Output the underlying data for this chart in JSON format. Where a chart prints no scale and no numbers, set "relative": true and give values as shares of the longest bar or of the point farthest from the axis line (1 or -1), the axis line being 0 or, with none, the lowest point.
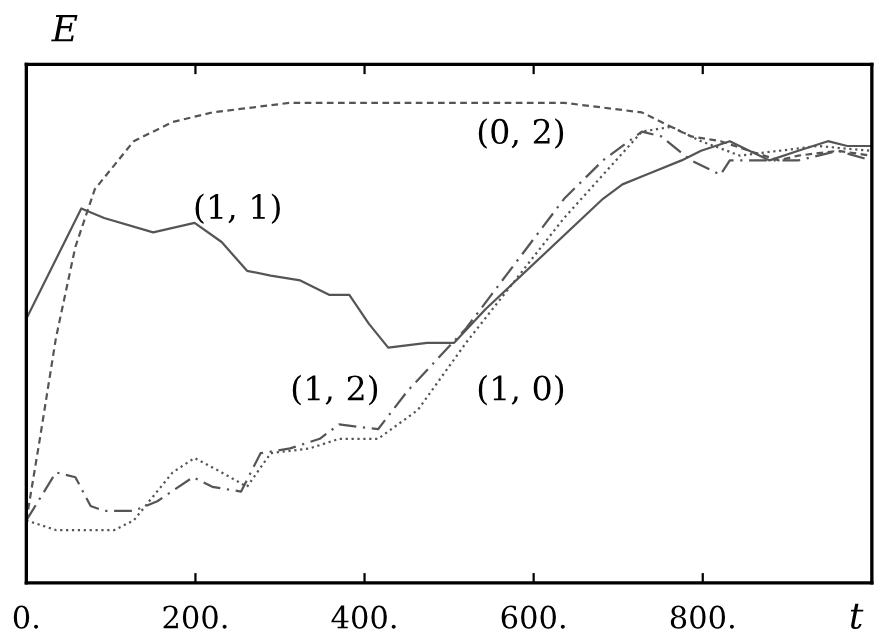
{
  "chart_data": {
    "type": "line",
    "relative": true,
    "ylabel": "E",
    "xlabel": "t",
    "tick_labels": "x",
    "grid": false,
    "legend": false,
    "xlim": [
      0,
      1000
    ],
    "xticks": [
      {
        "value": 0,
        "label": "0."
      },
      {
        "value": 200,
        "label": "200."
      },
      {
        "value": 400,
        "label": "400."
      },
      {
        "value": 600,
        "label": "600."
      },
      {
        "value": 800,
        "label": "800."
      }
    ],
    "series": [
      {
        "name": "(1, 1)",
        "color": "#555555",
        "line_style": "solid",
        "x": [
          0,
          65,
          92,
          150,
          199,
          231,
          261,
          289,
          324,
          358,
          382,
          405,
          428,
          474,
          506,
          543,
          682,
          705,
          733,
          775,
          798,
          832,
          855,
          879,
          913,
          948,
          971,
          999
        ],
        "values": [
          0.55,
          0.78,
          0.76,
          0.73,
          0.75,
          0.71,
          0.65,
          0.64,
          0.63,
          0.6,
          0.6,
          0.54,
          0.49,
          0.5,
          0.5,
          0.57,
          0.8,
          0.83,
          0.85,
          0.88,
          0.9,
          0.92,
          0.9,
          0.88,
          0.9,
          0.92,
          0.91,
          0.91
        ]
      },
      {
        "name": "(0, 2)",
        "color": "#555555",
        "line_style": "dashed",
        "x": [
          0,
          16,
          35,
          58,
          81,
          127,
          173,
          220,
          312,
          451,
          636,
          682,
          728,
          751,
          786,
          821,
          855,
          890,
          913,
          960,
          999
        ],
        "values": [
          0.13,
          0.3,
          0.51,
          0.7,
          0.82,
          0.92,
          0.96,
          0.98,
          1.0,
          1.0,
          1.0,
          0.99,
          0.98,
          0.96,
          0.93,
          0.92,
          0.9,
          0.88,
          0.89,
          0.9,
          0.89
        ]
      },
      {
        "name": "(1, 2)",
        "color": "#555555",
        "line_style": "dashdot",
        "x": [
          0,
          35,
          58,
          76,
          92,
          127,
          155,
          197,
          220,
          254,
          277,
          312,
          347,
          370,
          416,
          451,
          520,
          636,
          682,
          728,
          751,
          786,
          821,
          832,
          867,
          913,
          960,
          999
        ],
        "values": [
          0.13,
          0.23,
          0.22,
          0.16,
          0.15,
          0.15,
          0.17,
          0.22,
          0.2,
          0.19,
          0.27,
          0.28,
          0.3,
          0.33,
          0.32,
          0.4,
          0.53,
          0.8,
          0.88,
          0.94,
          0.93,
          0.88,
          0.85,
          0.88,
          0.88,
          0.88,
          0.9,
          0.88
        ]
      },
      {
        "name": "(1, 0)",
        "color": "#555555",
        "line_style": "dotted",
        "x": [
          0,
          35,
          69,
          104,
          127,
          173,
          199,
          231,
          261,
          289,
          335,
          370,
          416,
          463,
          520,
          636,
          682,
          728,
          763,
          798,
          844,
          890,
          936,
          999
        ],
        "values": [
          0.13,
          0.11,
          0.11,
          0.11,
          0.13,
          0.23,
          0.26,
          0.23,
          0.2,
          0.27,
          0.28,
          0.3,
          0.3,
          0.36,
          0.5,
          0.76,
          0.85,
          0.94,
          0.95,
          0.92,
          0.89,
          0.9,
          0.91,
          0.9
        ]
      }
    ]
  }
}
